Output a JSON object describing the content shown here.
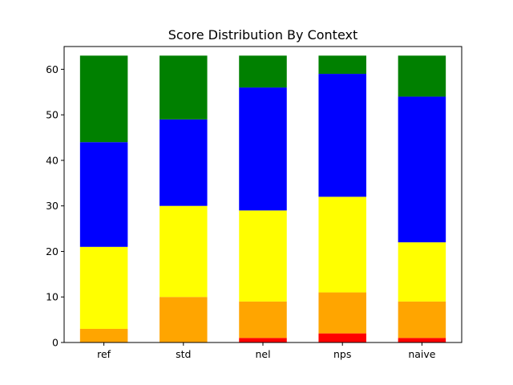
{
  "chart_data": {
    "type": "bar",
    "stacked": true,
    "title": "Score Distribution By Context",
    "xlabel": "",
    "ylabel": "",
    "categories": [
      "ref",
      "std",
      "nel",
      "nps",
      "naive"
    ],
    "ylim": [
      0,
      65
    ],
    "yticks": [
      0,
      10,
      20,
      30,
      40,
      50,
      60
    ],
    "grid": false,
    "legend": "none",
    "series": [
      {
        "color": "#ff0000",
        "values": [
          0,
          0,
          1,
          2,
          1
        ]
      },
      {
        "color": "#ffa500",
        "values": [
          3,
          10,
          8,
          9,
          8
        ]
      },
      {
        "color": "#ffff00",
        "values": [
          18,
          20,
          20,
          21,
          13
        ]
      },
      {
        "color": "#0000ff",
        "values": [
          23,
          19,
          27,
          27,
          32
        ]
      },
      {
        "color": "#008000",
        "values": [
          19,
          14,
          7,
          4,
          9
        ]
      }
    ]
  }
}
